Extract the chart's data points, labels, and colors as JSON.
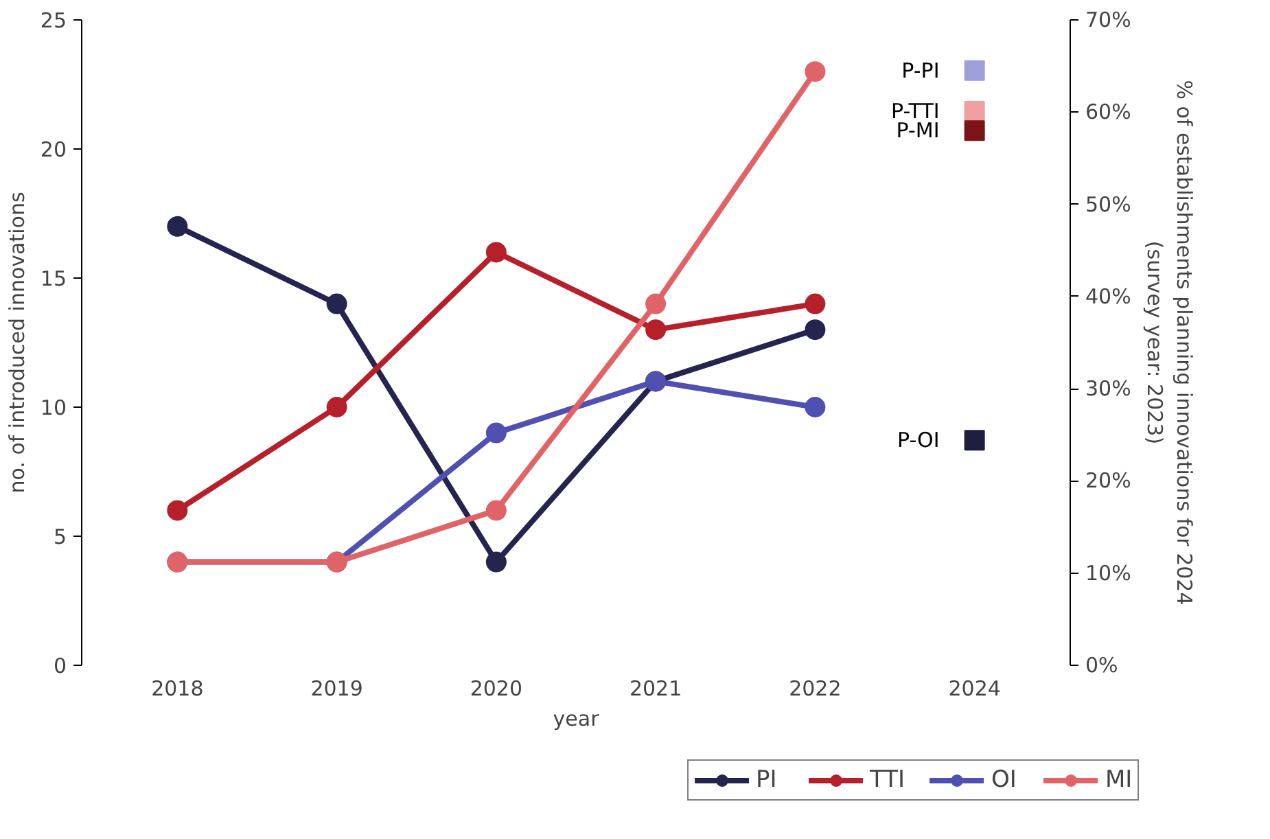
{
  "chart_data": {
    "type": "line",
    "xlabel": "year",
    "ylabel": "no. of introduced innovations",
    "y2label": "% of establishments planning innovations for 2024\n(survey year: 2023)",
    "categories": [
      "2018",
      "2019",
      "2020",
      "2021",
      "2022",
      "2024"
    ],
    "ylim": [
      0,
      25
    ],
    "yticks": [
      0,
      5,
      10,
      15,
      20,
      25
    ],
    "y2lim": [
      0,
      70
    ],
    "y2ticks": [
      {
        "value": 0,
        "label": "0%"
      },
      {
        "value": 10,
        "label": "10%"
      },
      {
        "value": 20,
        "label": "20%"
      },
      {
        "value": 30,
        "label": "30%"
      },
      {
        "value": 40,
        "label": "40%"
      },
      {
        "value": 50,
        "label": "50%"
      },
      {
        "value": 60,
        "label": "60%"
      },
      {
        "value": 70,
        "label": "70%"
      }
    ],
    "grid": false,
    "legend": "bottom right",
    "marker": "circle",
    "line_style": "solid",
    "series": [
      {
        "name": "PI",
        "color": "#25244f",
        "values": [
          17,
          14,
          4,
          11,
          13,
          null
        ]
      },
      {
        "name": "TTI",
        "color": "#b5202a",
        "values": [
          6,
          10,
          16,
          13,
          14,
          null
        ]
      },
      {
        "name": "OI",
        "color": "#5050b0",
        "values": [
          4,
          4,
          9,
          11,
          10,
          null
        ]
      },
      {
        "name": "MI",
        "color": "#e06467",
        "values": [
          4,
          4,
          6,
          14,
          23,
          null
        ]
      },
      {
        "name": "P-PI",
        "type": "scatter",
        "marker": "square",
        "axis": "y2",
        "color": "#9f9fdb",
        "values": [
          null,
          null,
          null,
          null,
          null,
          64.5
        ]
      },
      {
        "name": "P-TTI",
        "type": "scatter",
        "marker": "square",
        "axis": "y2",
        "color": "#f0a0a0",
        "values": [
          null,
          null,
          null,
          null,
          null,
          60.1
        ]
      },
      {
        "name": "P-MI",
        "type": "scatter",
        "marker": "square",
        "axis": "y2",
        "color": "#7b1416",
        "values": [
          null,
          null,
          null,
          null,
          null,
          58
        ]
      },
      {
        "name": "P-OI",
        "type": "scatter",
        "marker": "square",
        "axis": "y2",
        "color": "#1e1e40",
        "values": [
          null,
          null,
          null,
          null,
          null,
          24.4
        ]
      }
    ]
  }
}
